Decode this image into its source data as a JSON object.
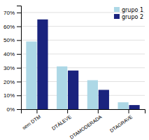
{
  "chart_data": {
    "type": "bar",
    "categories": [
      "sem DTM",
      "DTÁLEVE",
      "DTAMODERADA",
      "DTAGRAVE"
    ],
    "series": [
      {
        "name": "grupo 1",
        "color": "#add8e6",
        "values": [
          49,
          31,
          21,
          5
        ]
      },
      {
        "name": "grupo 2",
        "color": "#1a237e",
        "values": [
          65,
          28,
          14,
          3
        ]
      }
    ],
    "ylim": [
      0,
      75
    ],
    "yticks": [
      {
        "value": 0,
        "label": "0%"
      },
      {
        "value": 10,
        "label": "10%"
      },
      {
        "value": 20,
        "label": "20%"
      },
      {
        "value": 30,
        "label": "30%"
      },
      {
        "value": 40,
        "label": "40%"
      },
      {
        "value": 50,
        "label": "50%"
      },
      {
        "value": 60,
        "label": "60%"
      },
      {
        "value": 70,
        "label": "70%"
      }
    ],
    "grid": true,
    "legend": "upper right"
  }
}
